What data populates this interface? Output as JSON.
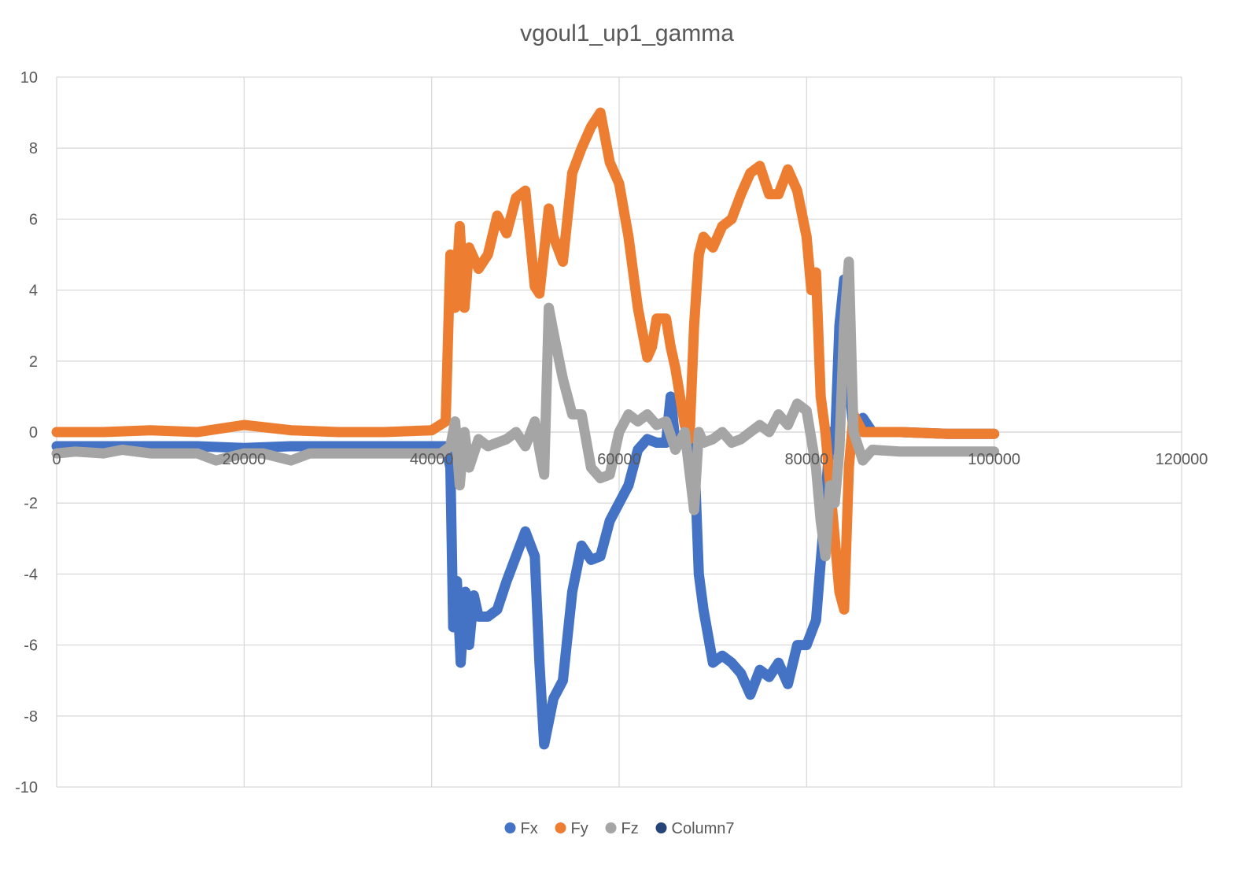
{
  "chart_data": {
    "type": "line",
    "title": "vgoul1_up1_gamma",
    "xlabel": "",
    "ylabel": "",
    "xlim": [
      0,
      120000
    ],
    "ylim": [
      -10,
      10
    ],
    "x_ticks": [
      0,
      20000,
      40000,
      60000,
      80000,
      100000,
      120000
    ],
    "x_tick_labels": [
      "0",
      "20000",
      "40000",
      "60000",
      "80000",
      "100000",
      "120000"
    ],
    "y_ticks": [
      -10,
      -8,
      -6,
      -4,
      -2,
      0,
      2,
      4,
      6,
      8,
      10
    ],
    "y_tick_labels": [
      "-10",
      "-8",
      "-6",
      "-4",
      "-2",
      "0",
      "2",
      "4",
      "6",
      "8",
      "10"
    ],
    "grid": true,
    "legend_position": "bottom",
    "series": [
      {
        "name": "Fx",
        "color": "#4472C4",
        "points": [
          [
            0,
            -0.4
          ],
          [
            5000,
            -0.4
          ],
          [
            10000,
            -0.4
          ],
          [
            15000,
            -0.4
          ],
          [
            20000,
            -0.45
          ],
          [
            25000,
            -0.4
          ],
          [
            30000,
            -0.4
          ],
          [
            35000,
            -0.4
          ],
          [
            40000,
            -0.4
          ],
          [
            41500,
            -0.4
          ],
          [
            42000,
            -1.0
          ],
          [
            42300,
            -5.5
          ],
          [
            42700,
            -4.2
          ],
          [
            43100,
            -6.5
          ],
          [
            43600,
            -4.5
          ],
          [
            44000,
            -6.0
          ],
          [
            44500,
            -4.6
          ],
          [
            45000,
            -5.2
          ],
          [
            46000,
            -5.2
          ],
          [
            47000,
            -5.0
          ],
          [
            48000,
            -4.2
          ],
          [
            49000,
            -3.5
          ],
          [
            50000,
            -2.8
          ],
          [
            51000,
            -3.5
          ],
          [
            51500,
            -6.5
          ],
          [
            52000,
            -8.8
          ],
          [
            53000,
            -7.5
          ],
          [
            54000,
            -7.0
          ],
          [
            55000,
            -4.5
          ],
          [
            56000,
            -3.2
          ],
          [
            57000,
            -3.6
          ],
          [
            58000,
            -3.5
          ],
          [
            59000,
            -2.5
          ],
          [
            60000,
            -2.0
          ],
          [
            61000,
            -1.5
          ],
          [
            62000,
            -0.5
          ],
          [
            63000,
            -0.2
          ],
          [
            64000,
            -0.3
          ],
          [
            65000,
            -0.3
          ],
          [
            65500,
            1.0
          ],
          [
            66000,
            -0.3
          ],
          [
            67000,
            -0.3
          ],
          [
            68000,
            -0.5
          ],
          [
            68500,
            -4.0
          ],
          [
            69000,
            -5.0
          ],
          [
            70000,
            -6.5
          ],
          [
            71000,
            -6.3
          ],
          [
            72000,
            -6.5
          ],
          [
            73000,
            -6.8
          ],
          [
            74000,
            -7.4
          ],
          [
            75000,
            -6.7
          ],
          [
            76000,
            -6.9
          ],
          [
            77000,
            -6.5
          ],
          [
            78000,
            -7.1
          ],
          [
            79000,
            -6.0
          ],
          [
            80000,
            -6.0
          ],
          [
            81000,
            -5.3
          ],
          [
            82000,
            -2.0
          ],
          [
            82500,
            0.0
          ],
          [
            83000,
            -0.5
          ],
          [
            83500,
            3.0
          ],
          [
            84000,
            4.3
          ],
          [
            84500,
            1.5
          ],
          [
            85000,
            0.0
          ],
          [
            86000,
            0.4
          ],
          [
            87000,
            0.0
          ],
          [
            90000,
            0.0
          ],
          [
            95000,
            -0.05
          ],
          [
            100000,
            -0.05
          ]
        ]
      },
      {
        "name": "Fy",
        "color": "#ED7D31",
        "points": [
          [
            0,
            0.0
          ],
          [
            5000,
            0.0
          ],
          [
            10000,
            0.05
          ],
          [
            15000,
            0.0
          ],
          [
            20000,
            0.2
          ],
          [
            25000,
            0.05
          ],
          [
            30000,
            0.0
          ],
          [
            35000,
            0.0
          ],
          [
            40000,
            0.05
          ],
          [
            41500,
            0.3
          ],
          [
            42000,
            5.0
          ],
          [
            42500,
            3.5
          ],
          [
            43000,
            5.8
          ],
          [
            43500,
            3.5
          ],
          [
            44000,
            5.2
          ],
          [
            45000,
            4.6
          ],
          [
            46000,
            5.0
          ],
          [
            47000,
            6.1
          ],
          [
            48000,
            5.6
          ],
          [
            49000,
            6.6
          ],
          [
            50000,
            6.8
          ],
          [
            51000,
            4.1
          ],
          [
            51500,
            3.9
          ],
          [
            52500,
            6.3
          ],
          [
            53000,
            5.5
          ],
          [
            54000,
            4.8
          ],
          [
            55000,
            7.3
          ],
          [
            56000,
            8.0
          ],
          [
            57000,
            8.6
          ],
          [
            58000,
            9.0
          ],
          [
            59000,
            7.6
          ],
          [
            60000,
            7.0
          ],
          [
            61000,
            5.5
          ],
          [
            62000,
            3.5
          ],
          [
            63000,
            2.1
          ],
          [
            63500,
            2.4
          ],
          [
            64000,
            3.2
          ],
          [
            65000,
            3.2
          ],
          [
            65500,
            2.4
          ],
          [
            66000,
            1.8
          ],
          [
            67000,
            0.2
          ],
          [
            67500,
            -0.2
          ],
          [
            68000,
            3.0
          ],
          [
            68500,
            5.0
          ],
          [
            69000,
            5.5
          ],
          [
            70000,
            5.2
          ],
          [
            71000,
            5.8
          ],
          [
            72000,
            6.0
          ],
          [
            73000,
            6.7
          ],
          [
            74000,
            7.3
          ],
          [
            75000,
            7.5
          ],
          [
            76000,
            6.7
          ],
          [
            77000,
            6.7
          ],
          [
            78000,
            7.4
          ],
          [
            79000,
            6.8
          ],
          [
            80000,
            5.5
          ],
          [
            80500,
            4.0
          ],
          [
            81000,
            4.5
          ],
          [
            81500,
            1.0
          ],
          [
            82000,
            0.0
          ],
          [
            82500,
            -1.5
          ],
          [
            83000,
            -3.0
          ],
          [
            83500,
            -4.5
          ],
          [
            84000,
            -5.0
          ],
          [
            84500,
            -1.0
          ],
          [
            85000,
            0.5
          ],
          [
            86000,
            0.0
          ],
          [
            88000,
            0.0
          ],
          [
            90000,
            0.0
          ],
          [
            95000,
            -0.05
          ],
          [
            100000,
            -0.05
          ]
        ]
      },
      {
        "name": "Fz",
        "color": "#A5A5A5",
        "points": [
          [
            0,
            -0.6
          ],
          [
            2000,
            -0.55
          ],
          [
            5000,
            -0.6
          ],
          [
            7000,
            -0.5
          ],
          [
            10000,
            -0.6
          ],
          [
            12000,
            -0.6
          ],
          [
            15000,
            -0.6
          ],
          [
            17000,
            -0.8
          ],
          [
            20000,
            -0.6
          ],
          [
            22000,
            -0.6
          ],
          [
            25000,
            -0.8
          ],
          [
            27000,
            -0.6
          ],
          [
            30000,
            -0.6
          ],
          [
            35000,
            -0.6
          ],
          [
            40000,
            -0.6
          ],
          [
            41000,
            -0.6
          ],
          [
            42000,
            -0.4
          ],
          [
            42500,
            0.3
          ],
          [
            43000,
            -1.5
          ],
          [
            43500,
            0.0
          ],
          [
            44000,
            -1.0
          ],
          [
            45000,
            -0.2
          ],
          [
            46000,
            -0.4
          ],
          [
            47000,
            -0.3
          ],
          [
            48000,
            -0.2
          ],
          [
            49000,
            0.0
          ],
          [
            50000,
            -0.4
          ],
          [
            51000,
            0.3
          ],
          [
            51500,
            -0.5
          ],
          [
            52000,
            -1.2
          ],
          [
            52500,
            3.5
          ],
          [
            53000,
            2.8
          ],
          [
            54000,
            1.5
          ],
          [
            55000,
            0.5
          ],
          [
            56000,
            0.5
          ],
          [
            57000,
            -1.0
          ],
          [
            58000,
            -1.3
          ],
          [
            59000,
            -1.2
          ],
          [
            60000,
            0.0
          ],
          [
            61000,
            0.5
          ],
          [
            62000,
            0.3
          ],
          [
            63000,
            0.5
          ],
          [
            64000,
            0.2
          ],
          [
            65000,
            0.3
          ],
          [
            66000,
            -0.5
          ],
          [
            67000,
            0.0
          ],
          [
            68000,
            -2.2
          ],
          [
            68500,
            0.0
          ],
          [
            69000,
            -0.3
          ],
          [
            70000,
            -0.2
          ],
          [
            71000,
            0.0
          ],
          [
            72000,
            -0.3
          ],
          [
            73000,
            -0.2
          ],
          [
            74000,
            0.0
          ],
          [
            75000,
            0.2
          ],
          [
            76000,
            0.0
          ],
          [
            77000,
            0.5
          ],
          [
            78000,
            0.2
          ],
          [
            79000,
            0.8
          ],
          [
            80000,
            0.6
          ],
          [
            81000,
            -1.0
          ],
          [
            81500,
            -2.5
          ],
          [
            82000,
            -3.5
          ],
          [
            82500,
            -1.5
          ],
          [
            83000,
            -2.0
          ],
          [
            83500,
            -0.5
          ],
          [
            84000,
            3.0
          ],
          [
            84500,
            4.8
          ],
          [
            85000,
            0.0
          ],
          [
            86000,
            -0.8
          ],
          [
            87000,
            -0.5
          ],
          [
            90000,
            -0.55
          ],
          [
            95000,
            -0.55
          ],
          [
            100000,
            -0.55
          ]
        ]
      },
      {
        "name": "Column7",
        "color": "#264478",
        "points": []
      }
    ]
  }
}
